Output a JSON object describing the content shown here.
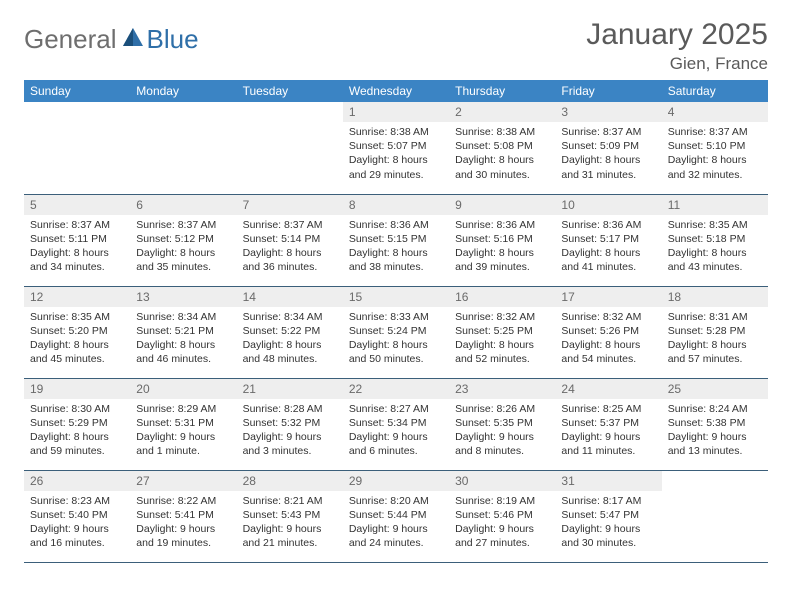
{
  "logo": {
    "part1": "General",
    "part2": "Blue"
  },
  "title": "January 2025",
  "location": "Gien, France",
  "header_bg": "#3b84c4",
  "header_fg": "#ffffff",
  "daynum_bg": "#eeeeee",
  "border_color": "#3b5f7a",
  "weekdays": [
    "Sunday",
    "Monday",
    "Tuesday",
    "Wednesday",
    "Thursday",
    "Friday",
    "Saturday"
  ],
  "weeks": [
    [
      null,
      null,
      null,
      {
        "n": "1",
        "sr": "8:38 AM",
        "ss": "5:07 PM",
        "dl": "8 hours and 29 minutes."
      },
      {
        "n": "2",
        "sr": "8:38 AM",
        "ss": "5:08 PM",
        "dl": "8 hours and 30 minutes."
      },
      {
        "n": "3",
        "sr": "8:37 AM",
        "ss": "5:09 PM",
        "dl": "8 hours and 31 minutes."
      },
      {
        "n": "4",
        "sr": "8:37 AM",
        "ss": "5:10 PM",
        "dl": "8 hours and 32 minutes."
      }
    ],
    [
      {
        "n": "5",
        "sr": "8:37 AM",
        "ss": "5:11 PM",
        "dl": "8 hours and 34 minutes."
      },
      {
        "n": "6",
        "sr": "8:37 AM",
        "ss": "5:12 PM",
        "dl": "8 hours and 35 minutes."
      },
      {
        "n": "7",
        "sr": "8:37 AM",
        "ss": "5:14 PM",
        "dl": "8 hours and 36 minutes."
      },
      {
        "n": "8",
        "sr": "8:36 AM",
        "ss": "5:15 PM",
        "dl": "8 hours and 38 minutes."
      },
      {
        "n": "9",
        "sr": "8:36 AM",
        "ss": "5:16 PM",
        "dl": "8 hours and 39 minutes."
      },
      {
        "n": "10",
        "sr": "8:36 AM",
        "ss": "5:17 PM",
        "dl": "8 hours and 41 minutes."
      },
      {
        "n": "11",
        "sr": "8:35 AM",
        "ss": "5:18 PM",
        "dl": "8 hours and 43 minutes."
      }
    ],
    [
      {
        "n": "12",
        "sr": "8:35 AM",
        "ss": "5:20 PM",
        "dl": "8 hours and 45 minutes."
      },
      {
        "n": "13",
        "sr": "8:34 AM",
        "ss": "5:21 PM",
        "dl": "8 hours and 46 minutes."
      },
      {
        "n": "14",
        "sr": "8:34 AM",
        "ss": "5:22 PM",
        "dl": "8 hours and 48 minutes."
      },
      {
        "n": "15",
        "sr": "8:33 AM",
        "ss": "5:24 PM",
        "dl": "8 hours and 50 minutes."
      },
      {
        "n": "16",
        "sr": "8:32 AM",
        "ss": "5:25 PM",
        "dl": "8 hours and 52 minutes."
      },
      {
        "n": "17",
        "sr": "8:32 AM",
        "ss": "5:26 PM",
        "dl": "8 hours and 54 minutes."
      },
      {
        "n": "18",
        "sr": "8:31 AM",
        "ss": "5:28 PM",
        "dl": "8 hours and 57 minutes."
      }
    ],
    [
      {
        "n": "19",
        "sr": "8:30 AM",
        "ss": "5:29 PM",
        "dl": "8 hours and 59 minutes."
      },
      {
        "n": "20",
        "sr": "8:29 AM",
        "ss": "5:31 PM",
        "dl": "9 hours and 1 minute."
      },
      {
        "n": "21",
        "sr": "8:28 AM",
        "ss": "5:32 PM",
        "dl": "9 hours and 3 minutes."
      },
      {
        "n": "22",
        "sr": "8:27 AM",
        "ss": "5:34 PM",
        "dl": "9 hours and 6 minutes."
      },
      {
        "n": "23",
        "sr": "8:26 AM",
        "ss": "5:35 PM",
        "dl": "9 hours and 8 minutes."
      },
      {
        "n": "24",
        "sr": "8:25 AM",
        "ss": "5:37 PM",
        "dl": "9 hours and 11 minutes."
      },
      {
        "n": "25",
        "sr": "8:24 AM",
        "ss": "5:38 PM",
        "dl": "9 hours and 13 minutes."
      }
    ],
    [
      {
        "n": "26",
        "sr": "8:23 AM",
        "ss": "5:40 PM",
        "dl": "9 hours and 16 minutes."
      },
      {
        "n": "27",
        "sr": "8:22 AM",
        "ss": "5:41 PM",
        "dl": "9 hours and 19 minutes."
      },
      {
        "n": "28",
        "sr": "8:21 AM",
        "ss": "5:43 PM",
        "dl": "9 hours and 21 minutes."
      },
      {
        "n": "29",
        "sr": "8:20 AM",
        "ss": "5:44 PM",
        "dl": "9 hours and 24 minutes."
      },
      {
        "n": "30",
        "sr": "8:19 AM",
        "ss": "5:46 PM",
        "dl": "9 hours and 27 minutes."
      },
      {
        "n": "31",
        "sr": "8:17 AM",
        "ss": "5:47 PM",
        "dl": "9 hours and 30 minutes."
      },
      null
    ]
  ],
  "labels": {
    "sunrise": "Sunrise:",
    "sunset": "Sunset:",
    "daylight": "Daylight:"
  }
}
